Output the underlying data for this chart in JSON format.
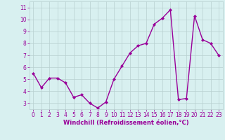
{
  "x": [
    0,
    1,
    2,
    3,
    4,
    5,
    6,
    7,
    8,
    9,
    10,
    11,
    12,
    13,
    14,
    15,
    16,
    17,
    18,
    19,
    20,
    21,
    22,
    23
  ],
  "y": [
    5.5,
    4.3,
    5.1,
    5.1,
    4.7,
    3.5,
    3.7,
    3.0,
    2.6,
    3.1,
    5.0,
    6.1,
    7.2,
    7.8,
    8.0,
    9.6,
    10.1,
    10.8,
    3.3,
    3.4,
    10.3,
    8.3,
    8.0,
    7.0
  ],
  "line_color": "#990099",
  "marker": "D",
  "marker_size": 2.0,
  "bg_color": "#d8f0f0",
  "grid_color": "#b8d0d0",
  "ylim": [
    2.5,
    11.5
  ],
  "xlim": [
    -0.5,
    23.5
  ],
  "yticks": [
    3,
    4,
    5,
    6,
    7,
    8,
    9,
    10,
    11
  ],
  "xticks": [
    0,
    1,
    2,
    3,
    4,
    5,
    6,
    7,
    8,
    9,
    10,
    11,
    12,
    13,
    14,
    15,
    16,
    17,
    18,
    19,
    20,
    21,
    22,
    23
  ],
  "xlabel": "Windchill (Refroidissement éolien,°C)",
  "tick_color": "#990099",
  "axis_label_color": "#990099",
  "linewidth": 1.0,
  "tick_fontsize": 5.5,
  "xlabel_fontsize": 6.0
}
